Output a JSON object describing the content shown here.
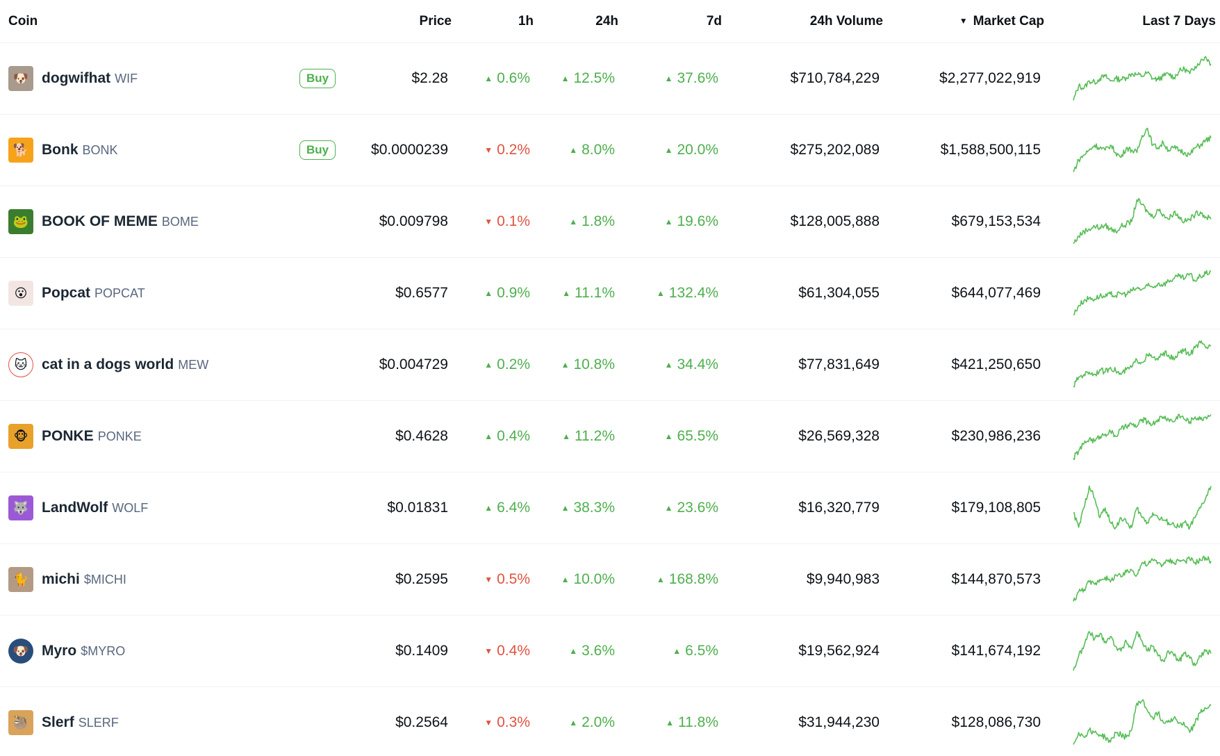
{
  "header": {
    "coin": "Coin",
    "price": "Price",
    "h1": "1h",
    "h24": "24h",
    "d7": "7d",
    "volume": "24h Volume",
    "market_cap": "Market Cap",
    "sparkline": "Last 7 Days",
    "sort_icon": "caret-down-icon"
  },
  "colors": {
    "up": "#4eaf4e",
    "down": "#e15241",
    "spark": "#57bd57",
    "buy": "#4cb14c"
  },
  "rows": [
    {
      "name": "dogwifhat",
      "symbol": "WIF",
      "buy": "Buy",
      "price": "$2.28",
      "h1": {
        "val": "0.6%",
        "dir": "up"
      },
      "h24": {
        "val": "12.5%",
        "dir": "up"
      },
      "d7": {
        "val": "37.6%",
        "dir": "up"
      },
      "volume": "$710,784,229",
      "market_cap": "$2,277,022,919",
      "logo": {
        "icon": "dog-hat-icon",
        "bg": "#a89a8c",
        "glyph": "🐶",
        "round": false
      },
      "spark": [
        0.05,
        0.35,
        0.3,
        0.45,
        0.42,
        0.5,
        0.55,
        0.45,
        0.5,
        0.48,
        0.52,
        0.6,
        0.58,
        0.55,
        0.62,
        0.5,
        0.48,
        0.55,
        0.6,
        0.52,
        0.65,
        0.7,
        0.6,
        0.75,
        0.85,
        0.95,
        0.8
      ]
    },
    {
      "name": "Bonk",
      "symbol": "BONK",
      "buy": "Buy",
      "price": "$0.0000239",
      "h1": {
        "val": "0.2%",
        "dir": "down"
      },
      "h24": {
        "val": "8.0%",
        "dir": "up"
      },
      "d7": {
        "val": "20.0%",
        "dir": "up"
      },
      "volume": "$275,202,089",
      "market_cap": "$1,588,500,115",
      "logo": {
        "icon": "bonk-dog-icon",
        "bg": "#f6a31b",
        "glyph": "🐕",
        "round": false
      },
      "spark": [
        0.05,
        0.3,
        0.4,
        0.5,
        0.6,
        0.55,
        0.5,
        0.6,
        0.45,
        0.35,
        0.55,
        0.5,
        0.45,
        0.8,
        0.95,
        0.6,
        0.55,
        0.65,
        0.5,
        0.55,
        0.5,
        0.45,
        0.4,
        0.55,
        0.6,
        0.7,
        0.75
      ]
    },
    {
      "name": "BOOK OF MEME",
      "symbol": "BOME",
      "buy": "",
      "price": "$0.009798",
      "h1": {
        "val": "0.1%",
        "dir": "down"
      },
      "h24": {
        "val": "1.8%",
        "dir": "up"
      },
      "d7": {
        "val": "19.6%",
        "dir": "up"
      },
      "volume": "$128,005,888",
      "market_cap": "$679,153,534",
      "logo": {
        "icon": "pepe-book-icon",
        "bg": "#3b7d2e",
        "glyph": "🐸",
        "round": false
      },
      "spark": [
        0.05,
        0.2,
        0.3,
        0.35,
        0.4,
        0.38,
        0.42,
        0.35,
        0.3,
        0.4,
        0.45,
        0.5,
        0.95,
        0.85,
        0.7,
        0.6,
        0.75,
        0.65,
        0.55,
        0.7,
        0.6,
        0.5,
        0.55,
        0.65,
        0.7,
        0.6,
        0.55
      ]
    },
    {
      "name": "Popcat",
      "symbol": "POPCAT",
      "buy": "",
      "price": "$0.6577",
      "h1": {
        "val": "0.9%",
        "dir": "up"
      },
      "h24": {
        "val": "11.1%",
        "dir": "up"
      },
      "d7": {
        "val": "132.4%",
        "dir": "up"
      },
      "volume": "$61,304,055",
      "market_cap": "$644,077,469",
      "logo": {
        "icon": "popcat-icon",
        "bg": "#f3e6e2",
        "glyph": "😮",
        "round": false
      },
      "spark": [
        0.05,
        0.25,
        0.35,
        0.4,
        0.38,
        0.45,
        0.42,
        0.48,
        0.45,
        0.5,
        0.48,
        0.55,
        0.6,
        0.58,
        0.65,
        0.62,
        0.7,
        0.68,
        0.75,
        0.8,
        0.85,
        0.8,
        0.9,
        0.75,
        0.85,
        0.9,
        0.95
      ]
    },
    {
      "name": "cat in a dogs world",
      "symbol": "MEW",
      "buy": "",
      "price": "$0.004729",
      "h1": {
        "val": "0.2%",
        "dir": "up"
      },
      "h24": {
        "val": "10.8%",
        "dir": "up"
      },
      "d7": {
        "val": "34.4%",
        "dir": "up"
      },
      "volume": "$77,831,649",
      "market_cap": "$421,250,650",
      "logo": {
        "icon": "mew-cat-icon",
        "bg": "#ffffff",
        "glyph": "🐱",
        "round": true
      },
      "spark": [
        0.05,
        0.25,
        0.3,
        0.35,
        0.3,
        0.4,
        0.35,
        0.45,
        0.38,
        0.3,
        0.4,
        0.45,
        0.6,
        0.55,
        0.7,
        0.65,
        0.6,
        0.75,
        0.7,
        0.6,
        0.75,
        0.8,
        0.7,
        0.85,
        0.95,
        0.85,
        0.9
      ]
    },
    {
      "name": "PONKE",
      "symbol": "PONKE",
      "buy": "",
      "price": "$0.4628",
      "h1": {
        "val": "0.4%",
        "dir": "up"
      },
      "h24": {
        "val": "11.2%",
        "dir": "up"
      },
      "d7": {
        "val": "65.5%",
        "dir": "up"
      },
      "volume": "$26,569,328",
      "market_cap": "$230,986,236",
      "logo": {
        "icon": "ponke-monkey-icon",
        "bg": "#e8a12a",
        "glyph": "🐵",
        "round": false
      },
      "spark": [
        0.05,
        0.2,
        0.35,
        0.45,
        0.4,
        0.5,
        0.55,
        0.6,
        0.5,
        0.65,
        0.7,
        0.75,
        0.7,
        0.85,
        0.8,
        0.75,
        0.85,
        0.9,
        0.85,
        0.8,
        0.95,
        0.85,
        0.8,
        0.9,
        0.85,
        0.9,
        0.95
      ]
    },
    {
      "name": "LandWolf",
      "symbol": "WOLF",
      "buy": "",
      "price": "$0.01831",
      "h1": {
        "val": "6.4%",
        "dir": "up"
      },
      "h24": {
        "val": "38.3%",
        "dir": "up"
      },
      "d7": {
        "val": "23.6%",
        "dir": "up"
      },
      "volume": "$16,320,779",
      "market_cap": "$179,108,805",
      "logo": {
        "icon": "wolf-icon",
        "bg": "#9b59d6",
        "glyph": "🐺",
        "round": false
      },
      "spark": [
        0.4,
        0.1,
        0.5,
        0.95,
        0.7,
        0.3,
        0.5,
        0.2,
        0.1,
        0.3,
        0.2,
        0.1,
        0.5,
        0.3,
        0.2,
        0.4,
        0.3,
        0.25,
        0.2,
        0.15,
        0.1,
        0.2,
        0.1,
        0.3,
        0.5,
        0.7,
        0.95
      ]
    },
    {
      "name": "michi",
      "symbol": "$MICHI",
      "buy": "",
      "price": "$0.2595",
      "h1": {
        "val": "0.5%",
        "dir": "down"
      },
      "h24": {
        "val": "10.0%",
        "dir": "up"
      },
      "d7": {
        "val": "168.8%",
        "dir": "up"
      },
      "volume": "$9,940,983",
      "market_cap": "$144,870,573",
      "logo": {
        "icon": "michi-cat-icon",
        "bg": "#b49a84",
        "glyph": "🐈",
        "round": false
      },
      "spark": [
        0.05,
        0.25,
        0.3,
        0.45,
        0.4,
        0.5,
        0.55,
        0.45,
        0.6,
        0.55,
        0.65,
        0.7,
        0.6,
        0.85,
        0.8,
        0.9,
        0.85,
        0.8,
        0.9,
        0.85,
        0.9,
        0.88,
        0.92,
        0.85,
        0.9,
        0.95,
        0.88
      ]
    },
    {
      "name": "Myro",
      "symbol": "$MYRO",
      "buy": "",
      "price": "$0.1409",
      "h1": {
        "val": "0.4%",
        "dir": "down"
      },
      "h24": {
        "val": "3.6%",
        "dir": "up"
      },
      "d7": {
        "val": "6.5%",
        "dir": "up"
      },
      "volume": "$19,562,924",
      "market_cap": "$141,674,192",
      "logo": {
        "icon": "myro-dog-icon",
        "bg": "#2a4d7a",
        "glyph": "🐶",
        "round": true
      },
      "spark": [
        0.1,
        0.4,
        0.6,
        0.9,
        0.75,
        0.85,
        0.7,
        0.8,
        0.6,
        0.5,
        0.7,
        0.55,
        0.9,
        0.7,
        0.5,
        0.6,
        0.4,
        0.3,
        0.5,
        0.4,
        0.3,
        0.45,
        0.35,
        0.2,
        0.4,
        0.5,
        0.45
      ]
    },
    {
      "name": "Slerf",
      "symbol": "SLERF",
      "buy": "",
      "price": "$0.2564",
      "h1": {
        "val": "0.3%",
        "dir": "down"
      },
      "h24": {
        "val": "2.0%",
        "dir": "up"
      },
      "d7": {
        "val": "11.8%",
        "dir": "up"
      },
      "volume": "$31,944,230",
      "market_cap": "$128,086,730",
      "logo": {
        "icon": "slerf-sloth-icon",
        "bg": "#d9a35c",
        "glyph": "🦥",
        "round": false
      },
      "spark": [
        0.05,
        0.3,
        0.2,
        0.35,
        0.3,
        0.25,
        0.2,
        0.1,
        0.3,
        0.25,
        0.2,
        0.35,
        0.9,
        0.95,
        0.75,
        0.6,
        0.7,
        0.5,
        0.55,
        0.6,
        0.5,
        0.45,
        0.3,
        0.5,
        0.7,
        0.8,
        0.85
      ]
    }
  ]
}
